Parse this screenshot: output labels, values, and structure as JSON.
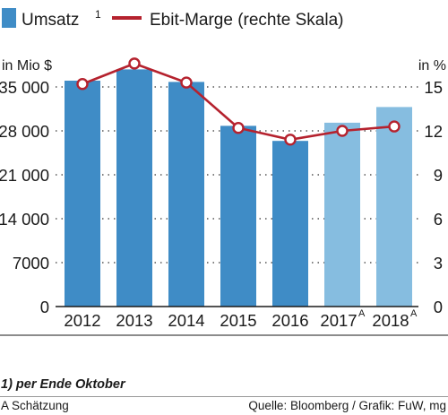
{
  "chart_data": {
    "type": "bar",
    "categories": [
      "2012",
      "2013",
      "2014",
      "2015",
      "2016",
      "2017",
      "2018"
    ],
    "category_superscripts": [
      "",
      "",
      "",
      "",
      "",
      "A",
      "A"
    ],
    "series": [
      {
        "name": "Umsatz",
        "name_superscript": "1",
        "type": "bar",
        "axis": "left",
        "color": "#3f8cc6",
        "estimate_color": "#86bde0",
        "estimated": [
          false,
          false,
          false,
          false,
          false,
          true,
          true
        ],
        "values": [
          36000,
          37800,
          35800,
          28800,
          26400,
          29300,
          31800
        ]
      },
      {
        "name": "Ebit-Marge (rechte Skala)",
        "type": "line",
        "axis": "right",
        "color": "#b5222e",
        "values": [
          15.2,
          16.6,
          15.3,
          12.2,
          11.4,
          12.0,
          12.3
        ]
      }
    ],
    "left_axis": {
      "label": "in  Mio $",
      "ticks": [
        0,
        7000,
        14000,
        21000,
        28000,
        35000
      ],
      "tick_labels": [
        "0",
        "7000",
        "14 000",
        "21 000",
        "28 000",
        "35 000"
      ],
      "range": [
        0,
        40000
      ]
    },
    "right_axis": {
      "label": "in %",
      "ticks": [
        0,
        3,
        6,
        9,
        12,
        15
      ],
      "tick_labels": [
        "0",
        "3",
        "6",
        "9",
        "12",
        "15"
      ],
      "range": [
        0,
        17.142857
      ]
    },
    "grid": "dotted horizontal"
  },
  "footnote": "1) per Ende Oktober",
  "estimate_note": "A Schätzung",
  "source": "Quelle: Bloomberg / Grafik: FuW, mg"
}
